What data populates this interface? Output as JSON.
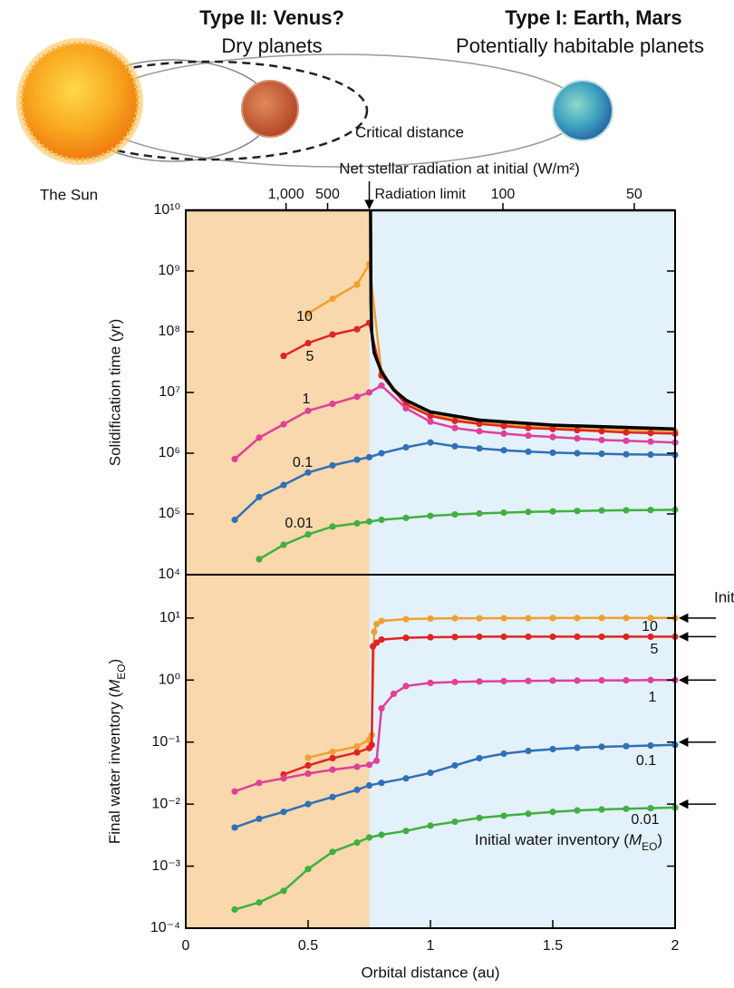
{
  "illustration": {
    "type2_title": "Type II: Venus?",
    "type2_subtitle": "Dry planets",
    "type1_title": "Type I: Earth, Mars",
    "type1_subtitle": "Potentially habitable planets",
    "critical": "Critical distance",
    "sun": "The Sun"
  },
  "chart_data": [
    {
      "type": "line",
      "ylabel": "Solidification time (yr)",
      "xlim": [
        0,
        2
      ],
      "ylim": [
        10000,
        10000000000
      ],
      "yscale": "log",
      "yticks": [
        {
          "value": 10000,
          "label": "10⁴"
        },
        {
          "value": 100000,
          "label": "10⁵"
        },
        {
          "value": 1000000,
          "label": "10⁶"
        },
        {
          "value": 10000000,
          "label": "10⁷"
        },
        {
          "value": 100000000,
          "label": "10⁸"
        },
        {
          "value": 1000000000,
          "label": "10⁹"
        },
        {
          "value": 10000000000,
          "label": "10¹⁰"
        }
      ],
      "x2label": "Net stellar radiation at initial (W/m²)",
      "x2scale": "inverse-square",
      "x2lim": [
        null,
        42
      ],
      "x2ticks": [
        {
          "value": 1000,
          "label": "1,000"
        },
        500,
        100,
        50
      ],
      "annotation": {
        "text": "Radiation limit",
        "x": 0.75
      },
      "regions": [
        {
          "x": [
            0,
            0.75
          ],
          "color": "#f8d8ac"
        },
        {
          "x": [
            0.75,
            2
          ],
          "color": "#e3f1fa"
        }
      ],
      "series": [
        {
          "name": "10",
          "color": "#f0a030",
          "x": [
            0.5,
            0.6,
            0.7,
            0.75,
            0.8,
            0.9,
            1.0,
            1.1,
            1.2,
            1.3,
            1.4,
            1.5,
            1.6,
            1.7,
            1.8,
            1.9,
            2.0
          ],
          "values": [
            200000000,
            350000000,
            600000000,
            1300000000,
            21000000,
            6800000,
            4400000,
            3700000,
            3300000,
            3050000,
            2850000,
            2700000,
            2600000,
            2500000,
            2400000,
            2350000,
            2300000
          ]
        },
        {
          "name": "5",
          "color": "#e02424",
          "x": [
            0.4,
            0.5,
            0.6,
            0.7,
            0.75,
            0.8,
            0.9,
            1.0,
            1.1,
            1.2,
            1.3,
            1.4,
            1.5,
            1.6,
            1.7,
            1.8,
            1.9,
            2.0
          ],
          "values": [
            40000000,
            65000000,
            90000000,
            110000000,
            140000000,
            19000000,
            6300000,
            4100000,
            3400000,
            3050000,
            2800000,
            2600000,
            2500000,
            2400000,
            2300000,
            2200000,
            2150000,
            2100000
          ]
        },
        {
          "name": "1",
          "color": "#e0409a",
          "x": [
            0.2,
            0.3,
            0.4,
            0.5,
            0.6,
            0.7,
            0.75,
            0.8,
            0.9,
            1.0,
            1.1,
            1.2,
            1.3,
            1.4,
            1.5,
            1.6,
            1.7,
            1.8,
            1.9,
            2.0
          ],
          "values": [
            800000,
            1800000,
            3000000,
            5000000,
            6500000,
            8500000,
            10000000,
            13000000,
            5500000,
            3300000,
            2600000,
            2300000,
            2100000,
            1950000,
            1850000,
            1750000,
            1650000,
            1600000,
            1550000,
            1500000
          ]
        },
        {
          "name": "0.1",
          "color": "#3070b8",
          "x": [
            0.2,
            0.3,
            0.4,
            0.5,
            0.6,
            0.7,
            0.75,
            0.8,
            0.9,
            1.0,
            1.1,
            1.2,
            1.3,
            1.4,
            1.5,
            1.6,
            1.7,
            1.8,
            1.9,
            2.0
          ],
          "values": [
            80000,
            190000,
            300000,
            480000,
            630000,
            780000,
            860000,
            1000000,
            1250000,
            1500000,
            1300000,
            1200000,
            1120000,
            1060000,
            1020000,
            1000000,
            980000,
            960000,
            950000,
            940000
          ]
        },
        {
          "name": "0.01",
          "color": "#40b040",
          "x": [
            0.3,
            0.4,
            0.5,
            0.6,
            0.7,
            0.75,
            0.8,
            0.9,
            1.0,
            1.1,
            1.2,
            1.3,
            1.4,
            1.5,
            1.6,
            1.7,
            1.8,
            1.9,
            2.0
          ],
          "values": [
            18000,
            31000,
            46000,
            62000,
            70000,
            75000,
            80000,
            86000,
            93000,
            98000,
            102000,
            105000,
            108000,
            110000,
            112000,
            114000,
            115000,
            116000,
            117000
          ]
        },
        {
          "color": "#000000",
          "markers": false,
          "x": [
            0.755,
            0.757,
            0.76,
            0.77,
            0.8,
            0.85,
            0.9,
            1.0,
            1.2,
            1.5,
            2.0
          ],
          "values": [
            10000000000,
            300000000,
            100000000,
            45000000,
            22000000,
            11000000,
            7500000,
            4800000,
            3500000,
            2900000,
            2500000
          ]
        }
      ]
    },
    {
      "type": "line",
      "xlabel": "Orbital distance (au)",
      "ylabel": [
        "Final water inventory (",
        "M",
        "EO",
        ")"
      ],
      "xlim": [
        0,
        2
      ],
      "xticks": [
        0,
        0.5,
        1,
        1.5,
        2
      ],
      "ylim": [
        0.0001,
        50
      ],
      "yscale": "log",
      "yticks": [
        {
          "value": 0.0001,
          "label": "10⁻⁴"
        },
        {
          "value": 0.001,
          "label": "10⁻³"
        },
        {
          "value": 0.01,
          "label": "10⁻²"
        },
        {
          "value": 0.1,
          "label": "10⁻¹"
        },
        {
          "value": 1,
          "label": "10⁰"
        },
        {
          "value": 10,
          "label": "10¹"
        }
      ],
      "regions": [
        {
          "x": [
            0,
            0.75
          ],
          "color": "#f8d8ac"
        },
        {
          "x": [
            0.75,
            2
          ],
          "color": "#e3f1fa"
        }
      ],
      "note": [
        "Initial water inventory (",
        "M",
        "EO",
        ")"
      ],
      "arrows": {
        "label": "Initial",
        "values": [
          10,
          5,
          1,
          0.1,
          0.01
        ]
      },
      "series": [
        {
          "name": "10",
          "color": "#f0a030",
          "x": [
            0.5,
            0.6,
            0.7,
            0.75,
            0.76,
            0.77,
            0.78,
            0.8,
            0.9,
            1.0,
            1.1,
            1.2,
            1.3,
            1.4,
            1.5,
            1.6,
            1.7,
            1.8,
            1.9,
            2.0
          ],
          "values": [
            0.056,
            0.07,
            0.085,
            0.11,
            0.13,
            6,
            8,
            9,
            9.6,
            9.8,
            9.9,
            9.9,
            9.95,
            9.95,
            10,
            10,
            10,
            10,
            10,
            10
          ]
        },
        {
          "name": "5",
          "color": "#e02424",
          "x": [
            0.4,
            0.5,
            0.6,
            0.7,
            0.75,
            0.76,
            0.765,
            0.78,
            0.8,
            0.9,
            1.0,
            1.1,
            1.2,
            1.3,
            1.4,
            1.5,
            1.6,
            1.7,
            1.8,
            1.9,
            2.0
          ],
          "values": [
            0.03,
            0.042,
            0.055,
            0.068,
            0.08,
            0.09,
            3.5,
            4,
            4.5,
            4.8,
            4.9,
            4.95,
            5,
            5,
            5,
            5,
            5,
            5,
            5,
            5,
            5
          ]
        },
        {
          "name": "1",
          "color": "#e0409a",
          "x": [
            0.2,
            0.3,
            0.4,
            0.5,
            0.6,
            0.7,
            0.75,
            0.78,
            0.8,
            0.85,
            0.9,
            1.0,
            1.1,
            1.2,
            1.3,
            1.4,
            1.5,
            1.6,
            1.7,
            1.8,
            1.9,
            2.0
          ],
          "values": [
            0.016,
            0.022,
            0.026,
            0.031,
            0.036,
            0.04,
            0.043,
            0.05,
            0.35,
            0.6,
            0.8,
            0.9,
            0.93,
            0.95,
            0.96,
            0.97,
            0.98,
            0.98,
            0.99,
            0.99,
            1,
            1
          ]
        },
        {
          "name": "0.1",
          "color": "#3070b8",
          "x": [
            0.2,
            0.3,
            0.4,
            0.5,
            0.6,
            0.7,
            0.75,
            0.8,
            0.9,
            1.0,
            1.1,
            1.2,
            1.3,
            1.4,
            1.5,
            1.6,
            1.7,
            1.8,
            1.9,
            2.0
          ],
          "values": [
            0.0042,
            0.0058,
            0.0075,
            0.01,
            0.013,
            0.017,
            0.02,
            0.022,
            0.026,
            0.032,
            0.042,
            0.055,
            0.065,
            0.072,
            0.077,
            0.081,
            0.084,
            0.086,
            0.088,
            0.09
          ]
        },
        {
          "name": "0.01",
          "color": "#40b040",
          "x": [
            0.2,
            0.3,
            0.4,
            0.5,
            0.6,
            0.7,
            0.75,
            0.8,
            0.9,
            1.0,
            1.1,
            1.2,
            1.3,
            1.4,
            1.5,
            1.6,
            1.7,
            1.8,
            1.9,
            2.0
          ],
          "values": [
            0.0002,
            0.00026,
            0.0004,
            0.0009,
            0.0017,
            0.0024,
            0.0029,
            0.0032,
            0.0037,
            0.0045,
            0.0052,
            0.006,
            0.0065,
            0.007,
            0.0075,
            0.0079,
            0.0082,
            0.0084,
            0.0086,
            0.0088
          ]
        }
      ]
    }
  ]
}
